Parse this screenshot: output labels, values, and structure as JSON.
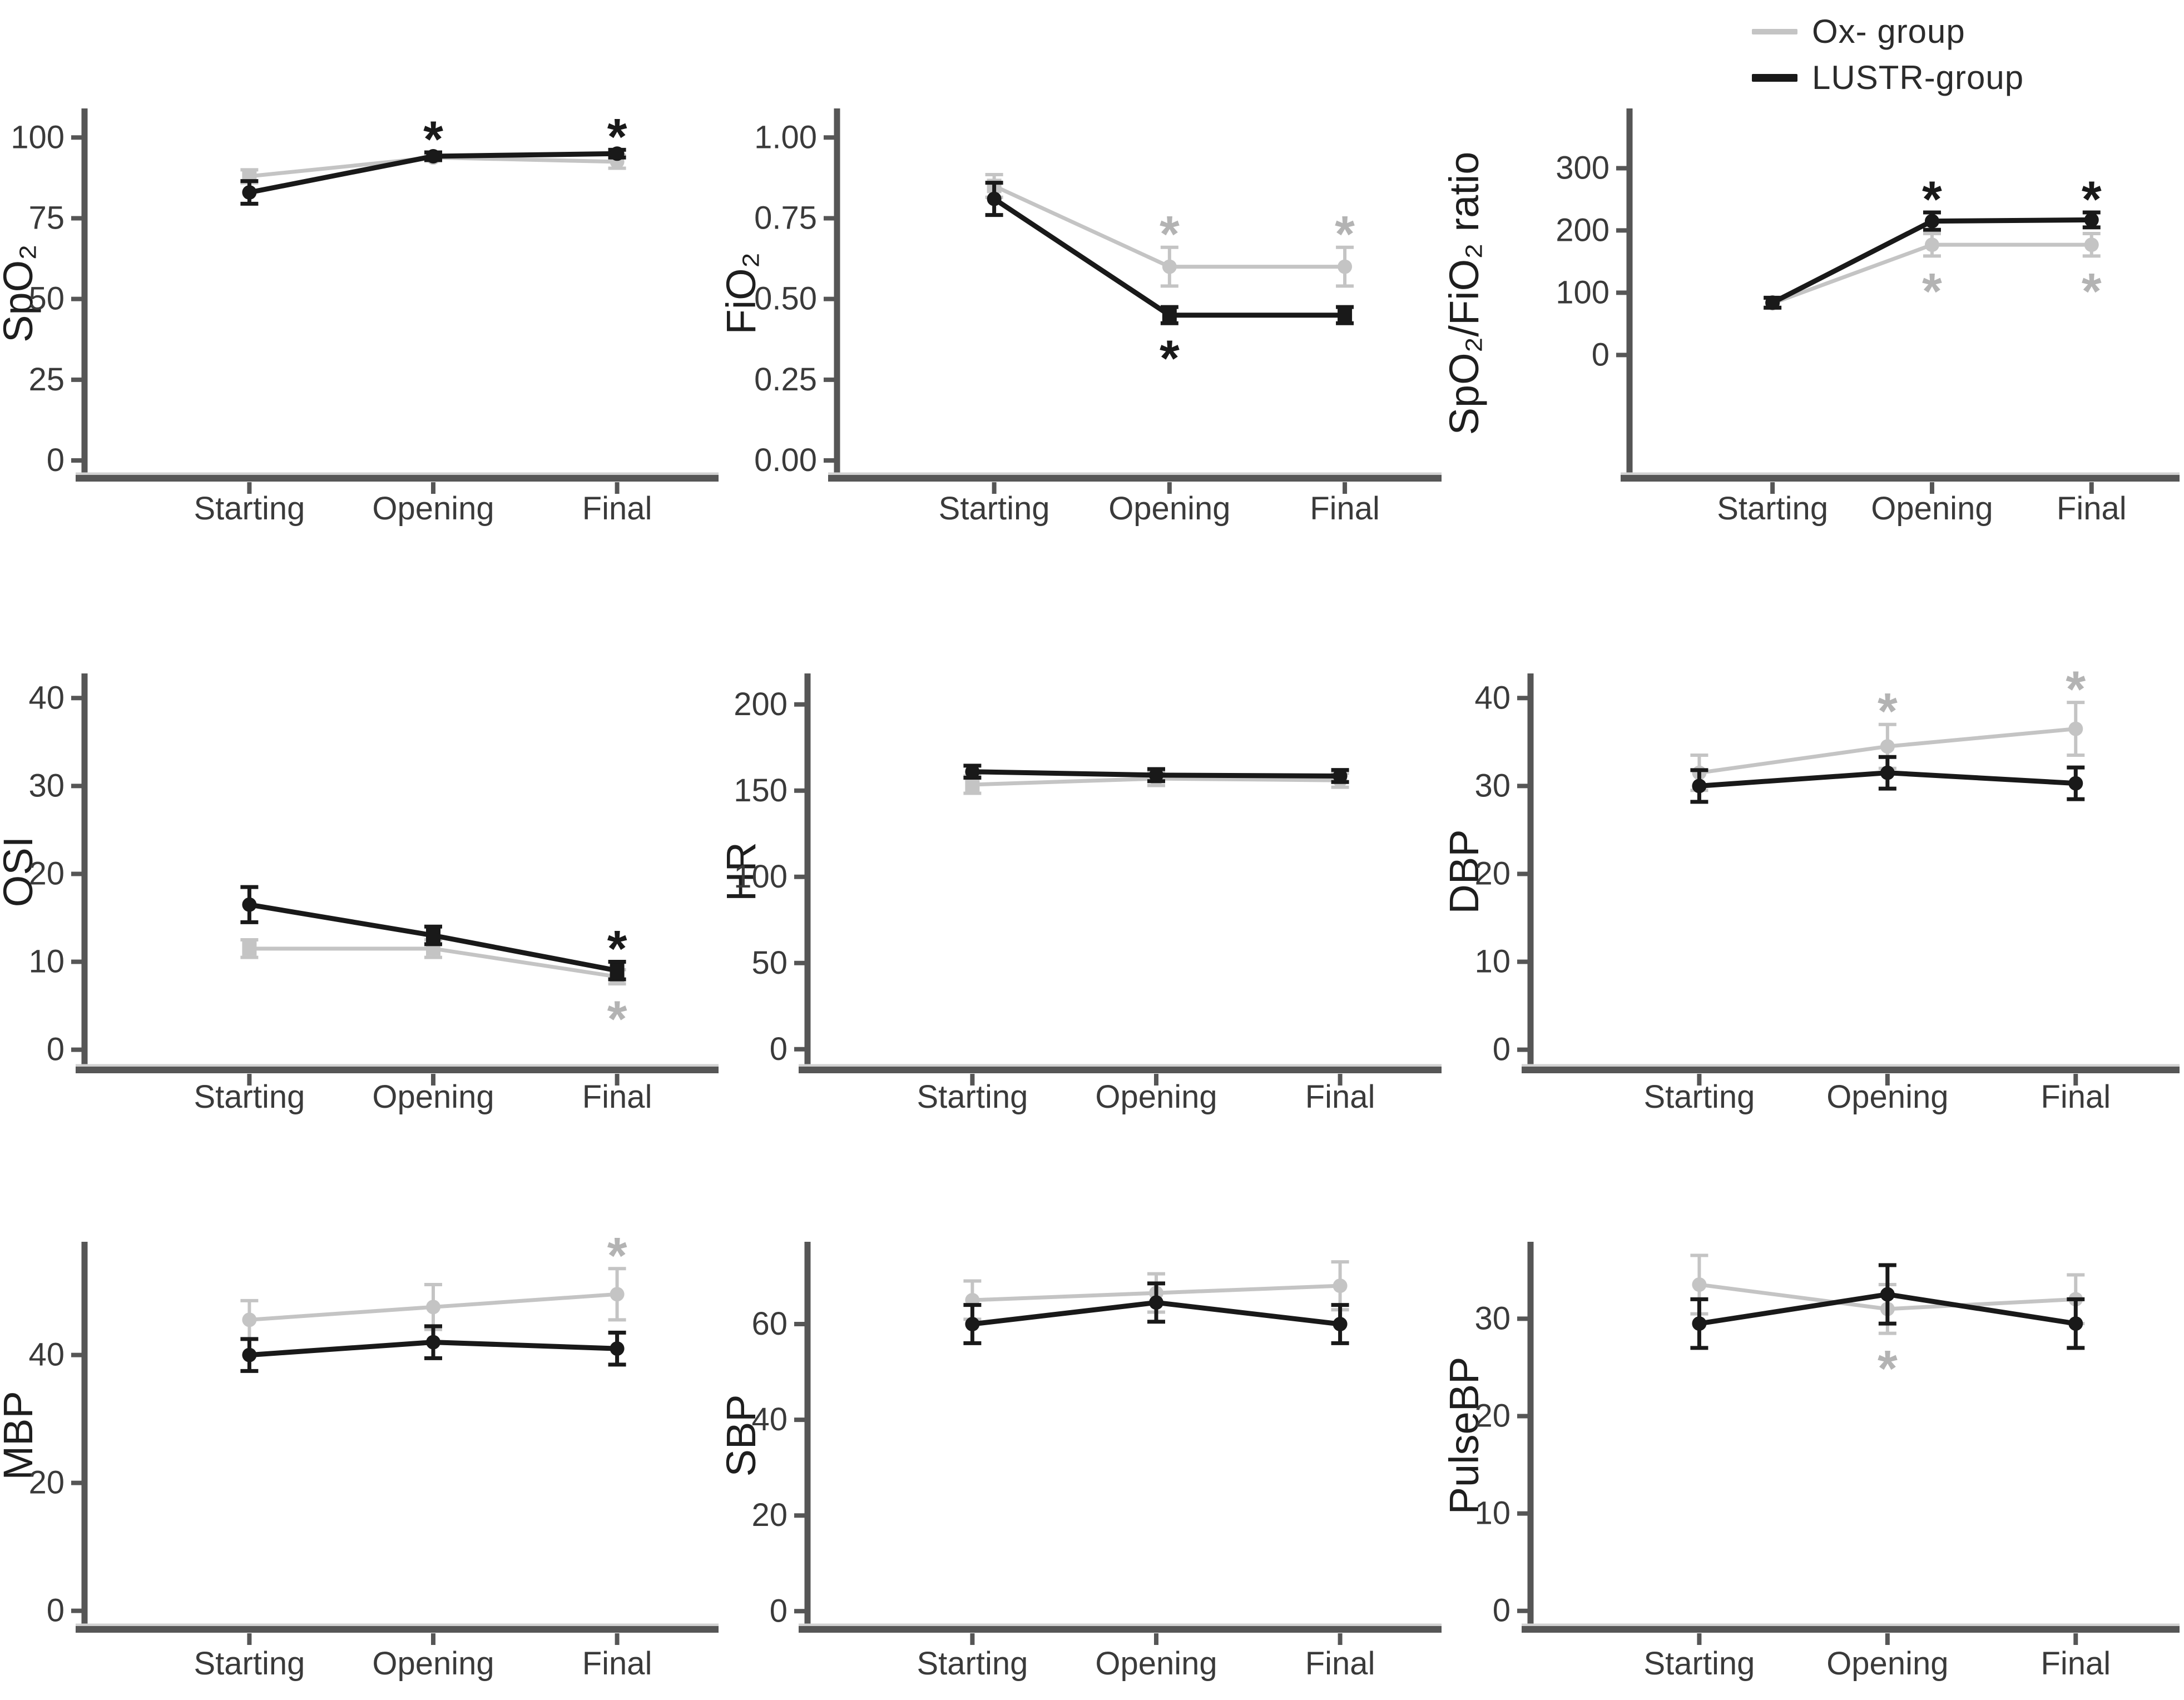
{
  "figure": {
    "background": "#ffffff",
    "x_axis_categories": [
      "Starting",
      "Opening",
      "Final"
    ]
  },
  "colors": {
    "ox": "#c4c4c4",
    "ox_asterisk": "#b3b3b3",
    "lustr": "#191919",
    "axis": "#565656",
    "axis_halo": "#d2d2d2",
    "tick_text": "#3a3a3a",
    "label_text": "#1e1e1e"
  },
  "legend": {
    "items": [
      {
        "label": "Ox- group",
        "series": "ox",
        "thickness": 10
      },
      {
        "label": "LUSTR-group",
        "series": "lustr",
        "thickness": 14
      }
    ]
  },
  "chart_data": [
    {
      "type": "line",
      "ylabel": "SpO₂",
      "categories": [
        "Starting",
        "Opening",
        "Final"
      ],
      "ytick_values": [
        0,
        25,
        50,
        75,
        100
      ],
      "ytick_labels": [
        "0",
        "25",
        "50",
        "75",
        "100"
      ],
      "ylim": [
        -5.5,
        109
      ],
      "series": [
        {
          "name": "Ox- group",
          "key": "ox",
          "values": [
            88,
            93.8,
            92.5
          ],
          "errors": [
            2,
            1,
            2
          ],
          "markers": [
            "square",
            "circle",
            "circle"
          ]
        },
        {
          "name": "LUSTR-group",
          "key": "lustr",
          "values": [
            83,
            94.2,
            95
          ],
          "errors": [
            3.5,
            1.2,
            1.2
          ]
        }
      ],
      "annotations": [
        {
          "series": 1,
          "point": 1,
          "side": "above",
          "symbol": "*"
        },
        {
          "series": 1,
          "point": 2,
          "side": "above",
          "symbol": "*"
        }
      ]
    },
    {
      "type": "line",
      "ylabel": "FiO₂",
      "categories": [
        "Starting",
        "Opening",
        "Final"
      ],
      "ytick_values": [
        0,
        0.25,
        0.5,
        0.75,
        1.0
      ],
      "ytick_labels": [
        "0.00",
        "0.25",
        "0.50",
        "0.75",
        "1.00"
      ],
      "ylim": [
        -0.055,
        1.09
      ],
      "series": [
        {
          "name": "Ox- group",
          "key": "ox",
          "values": [
            0.85,
            0.6,
            0.6
          ],
          "errors": [
            0.035,
            0.06,
            0.06
          ],
          "markers": [
            "square",
            "circle",
            "circle"
          ]
        },
        {
          "name": "LUSTR-group",
          "key": "lustr",
          "values": [
            0.81,
            0.45,
            0.45
          ],
          "errors": [
            0.05,
            0.025,
            0.025
          ],
          "markers": [
            "circle",
            "square",
            "square"
          ]
        }
      ],
      "annotations": [
        {
          "series": 0,
          "point": 1,
          "side": "above",
          "symbol": "*"
        },
        {
          "series": 0,
          "point": 2,
          "side": "above",
          "symbol": "*"
        },
        {
          "series": 1,
          "point": 1,
          "side": "below",
          "symbol": "*"
        }
      ]
    },
    {
      "type": "line",
      "ylabel": "SpO₂/FiO₂ ratio",
      "categories": [
        "Starting",
        "Opening",
        "Final"
      ],
      "ytick_values": [
        0,
        100,
        200,
        300
      ],
      "ytick_labels": [
        "0",
        "100",
        "200",
        "300"
      ],
      "ylim": [
        -198,
        396
      ],
      "series": [
        {
          "name": "Ox- group",
          "key": "ox",
          "values": [
            83,
            177,
            177
          ],
          "errors": [
            8,
            18,
            18
          ]
        },
        {
          "name": "LUSTR-group",
          "key": "lustr",
          "values": [
            84,
            215,
            217
          ],
          "errors": [
            8,
            14,
            12
          ]
        }
      ],
      "annotations": [
        {
          "series": 1,
          "point": 1,
          "side": "above",
          "symbol": "*"
        },
        {
          "series": 1,
          "point": 2,
          "side": "above",
          "symbol": "*"
        },
        {
          "series": 0,
          "point": 1,
          "side": "below",
          "symbol": "*"
        },
        {
          "series": 0,
          "point": 2,
          "side": "below",
          "symbol": "*"
        }
      ]
    },
    {
      "type": "line",
      "ylabel": "OSI",
      "categories": [
        "Starting",
        "Opening",
        "Final"
      ],
      "ytick_values": [
        0,
        10,
        20,
        30,
        40
      ],
      "ytick_labels": [
        "0",
        "10",
        "20",
        "30",
        "40"
      ],
      "ylim": [
        -2.3,
        42.8
      ],
      "series": [
        {
          "name": "Ox- group",
          "key": "ox",
          "values": [
            11.5,
            11.5,
            8.3
          ],
          "errors": [
            1,
            1,
            0.8
          ],
          "markers": [
            "square",
            "square",
            "square"
          ]
        },
        {
          "name": "LUSTR-group",
          "key": "lustr",
          "values": [
            16.5,
            13,
            9
          ],
          "errors": [
            2,
            1,
            1
          ],
          "markers": [
            "circle",
            "square",
            "square"
          ]
        }
      ],
      "annotations": [
        {
          "series": 1,
          "point": 2,
          "side": "above",
          "symbol": "*"
        },
        {
          "series": 0,
          "point": 2,
          "side": "below",
          "symbol": "*"
        }
      ]
    },
    {
      "type": "line",
      "ylabel": "HR",
      "categories": [
        "Starting",
        "Opening",
        "Final"
      ],
      "ytick_values": [
        0,
        50,
        100,
        150,
        200
      ],
      "ytick_labels": [
        "0",
        "50",
        "100",
        "150",
        "200"
      ],
      "ylim": [
        -12,
        218
      ],
      "series": [
        {
          "name": "Ox- group",
          "key": "ox",
          "values": [
            153.5,
            157,
            156
          ],
          "errors": [
            5,
            4,
            4
          ],
          "markers": [
            "square",
            "circle",
            "circle"
          ]
        },
        {
          "name": "LUSTR-group",
          "key": "lustr",
          "values": [
            161,
            159,
            158.5
          ],
          "errors": [
            3.5,
            3.5,
            3.5
          ]
        }
      ],
      "annotations": []
    },
    {
      "type": "line",
      "ylabel": "DBP",
      "categories": [
        "Starting",
        "Opening",
        "Final"
      ],
      "ytick_values": [
        0,
        10,
        20,
        30,
        40
      ],
      "ytick_labels": [
        "0",
        "10",
        "20",
        "30",
        "40"
      ],
      "ylim": [
        -2.3,
        42.8
      ],
      "series": [
        {
          "name": "Ox- group",
          "key": "ox",
          "values": [
            31.5,
            34.5,
            36.5
          ],
          "errors": [
            2,
            2.5,
            3
          ]
        },
        {
          "name": "LUSTR-group",
          "key": "lustr",
          "values": [
            30,
            31.5,
            30.3
          ],
          "errors": [
            1.8,
            1.8,
            1.8
          ]
        }
      ],
      "annotations": [
        {
          "series": 0,
          "point": 1,
          "side": "above",
          "symbol": "*"
        },
        {
          "series": 0,
          "point": 2,
          "side": "above",
          "symbol": "*"
        }
      ]
    },
    {
      "type": "line",
      "ylabel": "MBP",
      "categories": [
        "Starting",
        "Opening",
        "Final"
      ],
      "ytick_values": [
        0,
        20,
        40
      ],
      "ytick_labels": [
        "0",
        "20",
        "40"
      ],
      "ylim": [
        -2.9,
        57.7
      ],
      "series": [
        {
          "name": "Ox- group",
          "key": "ox",
          "values": [
            45.5,
            47.5,
            49.5
          ],
          "errors": [
            3,
            3.5,
            4
          ]
        },
        {
          "name": "LUSTR-group",
          "key": "lustr",
          "values": [
            40,
            42,
            41
          ],
          "errors": [
            2.5,
            2.5,
            2.5
          ]
        }
      ],
      "annotations": [
        {
          "series": 0,
          "point": 2,
          "side": "above",
          "symbol": "*"
        }
      ]
    },
    {
      "type": "line",
      "ylabel": "SBP",
      "categories": [
        "Starting",
        "Opening",
        "Final"
      ],
      "ytick_values": [
        0,
        20,
        40,
        60
      ],
      "ytick_labels": [
        "0",
        "20",
        "40",
        "60"
      ],
      "ylim": [
        -3.8,
        77.2
      ],
      "series": [
        {
          "name": "Ox- group",
          "key": "ox",
          "values": [
            65,
            66.5,
            68
          ],
          "errors": [
            4,
            4,
            5
          ]
        },
        {
          "name": "LUSTR-group",
          "key": "lustr",
          "values": [
            60,
            64.5,
            60
          ],
          "errors": [
            4,
            4,
            4
          ]
        }
      ],
      "annotations": []
    },
    {
      "type": "line",
      "ylabel": "PulseBP",
      "categories": [
        "Starting",
        "Opening",
        "Final"
      ],
      "ytick_values": [
        0,
        10,
        20,
        30
      ],
      "ytick_labels": [
        "0",
        "10",
        "20",
        "30"
      ],
      "ylim": [
        -1.9,
        37.9
      ],
      "series": [
        {
          "name": "Ox- group",
          "key": "ox",
          "values": [
            33.5,
            31,
            32
          ],
          "errors": [
            3,
            2.5,
            2.5
          ]
        },
        {
          "name": "LUSTR-group",
          "key": "lustr",
          "values": [
            29.5,
            32.5,
            29.5
          ],
          "errors": [
            2.5,
            3,
            2.5
          ]
        }
      ],
      "annotations": [
        {
          "series": 0,
          "point": 1,
          "side": "below",
          "symbol": "*"
        }
      ]
    }
  ]
}
